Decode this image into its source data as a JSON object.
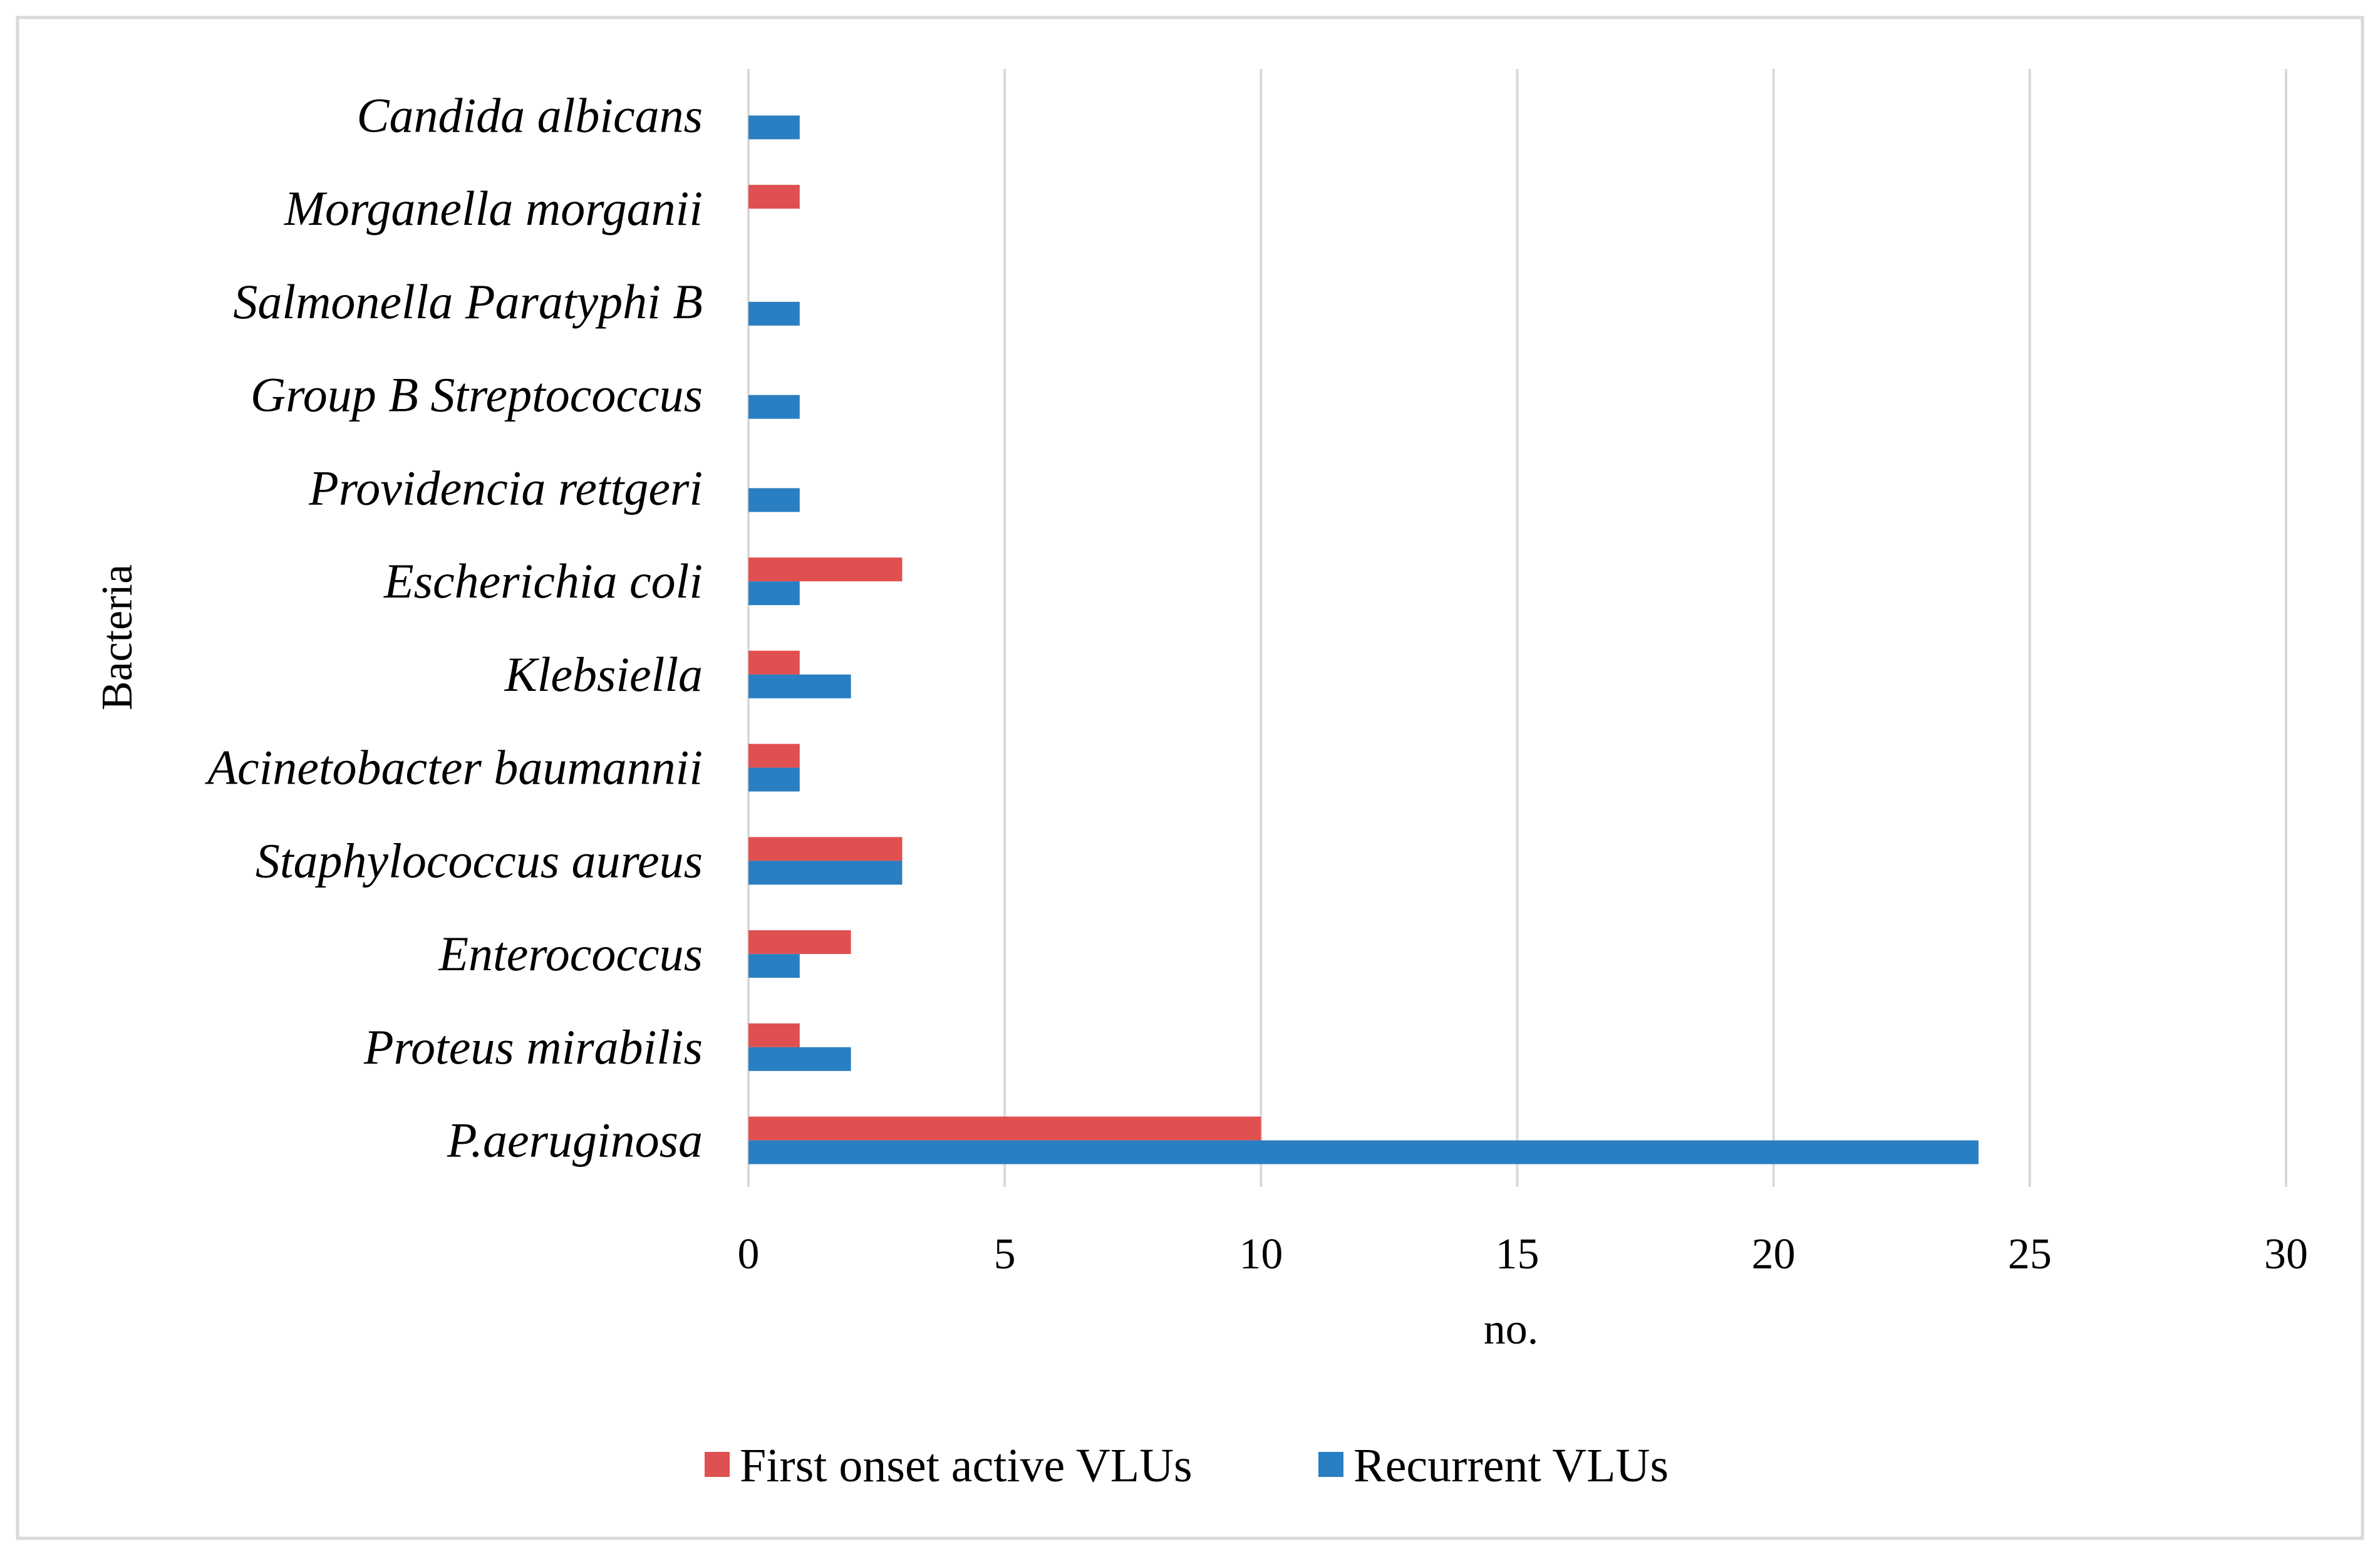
{
  "chart_data": {
    "type": "bar",
    "orientation": "horizontal",
    "categories": [
      "P.aeruginosa",
      "Proteus mirabilis",
      "Enterococcus",
      "Staphylococcus aureus",
      "Acinetobacter baumannii",
      "Klebsiella",
      "Escherichia coli",
      "Providencia rettgeri",
      "Group B Streptococcus",
      "Salmonella Paratyphi B",
      "Morganella morganii",
      "Candida albicans"
    ],
    "series": [
      {
        "name": "First onset active VLUs",
        "color": "#e05050",
        "values": [
          10,
          1,
          2,
          3,
          1,
          1,
          3,
          0,
          0,
          0,
          1,
          0
        ]
      },
      {
        "name": "Recurrent VLUs",
        "color": "#2a7fc2",
        "values": [
          24,
          2,
          1,
          3,
          1,
          2,
          1,
          1,
          1,
          1,
          0,
          1
        ]
      }
    ],
    "title": "",
    "xlabel": "no.",
    "ylabel": "Bacteria",
    "xlim": [
      0,
      30
    ],
    "xticks": [
      0,
      5,
      10,
      15,
      20,
      25,
      30
    ],
    "grid": true,
    "legend_position": "bottom"
  }
}
